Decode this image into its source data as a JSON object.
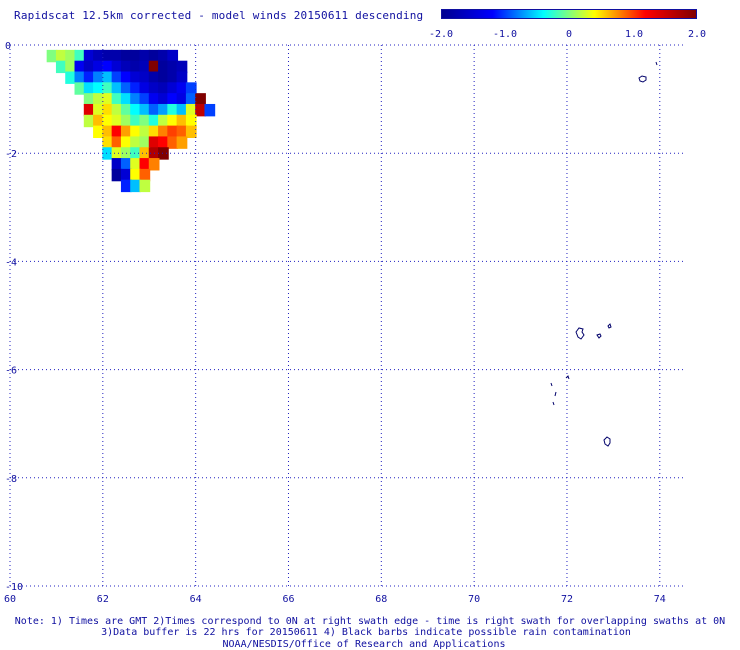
{
  "title": "Rapidscat 12.5km corrected - model winds 20150611 descending",
  "colorbar": {
    "ticks": [
      "-2.0",
      "-1.0",
      "0",
      "1.0",
      "2.0"
    ],
    "colors": [
      "#00008f",
      "#0000ff",
      "#00ffff",
      "#ffff00",
      "#ff0000",
      "#800000"
    ]
  },
  "notes": {
    "line1": "Note: 1) Times are GMT 2)Times correspond to 0N at right swath edge - time is right swath for overlapping swaths at 0N",
    "line2": "3)Data buffer is 22 hrs for 20150611 4) Black barbs indicate possible rain contamination",
    "line3": "NOAA/NESDIS/Office of Research and Applications"
  },
  "chart_data": {
    "type": "heatmap",
    "title": "Rapidscat 12.5km corrected - model winds 20150611 descending",
    "xlim": [
      60,
      74.5
    ],
    "ylim": [
      -10,
      0
    ],
    "x_ticks": [
      "60",
      "62",
      "64",
      "66",
      "68",
      "70",
      "72",
      "74"
    ],
    "y_ticks": [
      "0",
      "-2",
      "-4",
      "-6",
      "-8",
      "-10"
    ],
    "grid": true,
    "grid_style": "dotted",
    "colorscale_range": [
      -2.0,
      2.0
    ],
    "cell_size_deg": 0.22,
    "cells": [
      {
        "lon": 60.9,
        "lat": -0.2,
        "v": 0.0
      },
      {
        "lon": 61.1,
        "lat": -0.2,
        "v": 0.2
      },
      {
        "lon": 61.3,
        "lat": -0.2,
        "v": 0.1
      },
      {
        "lon": 61.5,
        "lat": -0.2,
        "v": -0.2
      },
      {
        "lon": 61.7,
        "lat": -0.2,
        "v": -1.5
      },
      {
        "lon": 61.9,
        "lat": -0.2,
        "v": -1.7
      },
      {
        "lon": 62.1,
        "lat": -0.2,
        "v": -1.8
      },
      {
        "lon": 62.3,
        "lat": -0.2,
        "v": -1.8
      },
      {
        "lon": 62.5,
        "lat": -0.2,
        "v": -1.9
      },
      {
        "lon": 62.7,
        "lat": -0.2,
        "v": -1.9
      },
      {
        "lon": 62.9,
        "lat": -0.2,
        "v": -1.8
      },
      {
        "lon": 63.1,
        "lat": -0.2,
        "v": -1.9
      },
      {
        "lon": 63.3,
        "lat": -0.2,
        "v": -1.8
      },
      {
        "lon": 63.5,
        "lat": -0.2,
        "v": -1.6
      },
      {
        "lon": 61.1,
        "lat": -0.4,
        "v": -0.2
      },
      {
        "lon": 61.3,
        "lat": -0.4,
        "v": 0.1
      },
      {
        "lon": 61.5,
        "lat": -0.4,
        "v": -1.3
      },
      {
        "lon": 61.7,
        "lat": -0.4,
        "v": -1.6
      },
      {
        "lon": 61.9,
        "lat": -0.4,
        "v": -1.4
      },
      {
        "lon": 62.1,
        "lat": -0.4,
        "v": -1.2
      },
      {
        "lon": 62.3,
        "lat": -0.4,
        "v": -1.5
      },
      {
        "lon": 62.5,
        "lat": -0.4,
        "v": -1.7
      },
      {
        "lon": 62.7,
        "lat": -0.4,
        "v": -1.8
      },
      {
        "lon": 62.9,
        "lat": -0.4,
        "v": -1.7
      },
      {
        "lon": 63.1,
        "lat": -0.4,
        "v": 2.0
      },
      {
        "lon": 63.3,
        "lat": -0.4,
        "v": -1.9
      },
      {
        "lon": 63.5,
        "lat": -0.4,
        "v": -1.8
      },
      {
        "lon": 63.7,
        "lat": -0.4,
        "v": -1.7
      },
      {
        "lon": 61.3,
        "lat": -0.6,
        "v": -0.3
      },
      {
        "lon": 61.5,
        "lat": -0.6,
        "v": -0.8
      },
      {
        "lon": 61.7,
        "lat": -0.6,
        "v": -1.1
      },
      {
        "lon": 61.9,
        "lat": -0.6,
        "v": -0.8
      },
      {
        "lon": 62.1,
        "lat": -0.6,
        "v": -0.6
      },
      {
        "lon": 62.3,
        "lat": -0.6,
        "v": -1.0
      },
      {
        "lon": 62.5,
        "lat": -0.6,
        "v": -1.2
      },
      {
        "lon": 62.7,
        "lat": -0.6,
        "v": -1.5
      },
      {
        "lon": 62.9,
        "lat": -0.6,
        "v": -1.6
      },
      {
        "lon": 63.1,
        "lat": -0.6,
        "v": -1.8
      },
      {
        "lon": 63.3,
        "lat": -0.6,
        "v": -1.9
      },
      {
        "lon": 63.5,
        "lat": -0.6,
        "v": -1.8
      },
      {
        "lon": 63.7,
        "lat": -0.6,
        "v": -1.6
      },
      {
        "lon": 61.5,
        "lat": -0.8,
        "v": -0.1
      },
      {
        "lon": 61.7,
        "lat": -0.8,
        "v": -0.5
      },
      {
        "lon": 61.9,
        "lat": -0.8,
        "v": -0.4
      },
      {
        "lon": 62.1,
        "lat": -0.8,
        "v": -0.2
      },
      {
        "lon": 62.3,
        "lat": -0.8,
        "v": -0.6
      },
      {
        "lon": 62.5,
        "lat": -0.8,
        "v": -0.9
      },
      {
        "lon": 62.7,
        "lat": -0.8,
        "v": -1.1
      },
      {
        "lon": 62.9,
        "lat": -0.8,
        "v": -1.4
      },
      {
        "lon": 63.1,
        "lat": -0.8,
        "v": -1.6
      },
      {
        "lon": 63.3,
        "lat": -0.8,
        "v": -1.7
      },
      {
        "lon": 63.5,
        "lat": -0.8,
        "v": -1.5
      },
      {
        "lon": 63.7,
        "lat": -0.8,
        "v": -1.3
      },
      {
        "lon": 63.9,
        "lat": -0.8,
        "v": -1.0
      },
      {
        "lon": 61.7,
        "lat": -1.0,
        "v": 0.0
      },
      {
        "lon": 61.9,
        "lat": -1.0,
        "v": 0.2
      },
      {
        "lon": 62.1,
        "lat": -1.0,
        "v": 0.3
      },
      {
        "lon": 62.3,
        "lat": -1.0,
        "v": -0.2
      },
      {
        "lon": 62.5,
        "lat": -1.0,
        "v": -0.5
      },
      {
        "lon": 62.7,
        "lat": -1.0,
        "v": -0.8
      },
      {
        "lon": 62.9,
        "lat": -1.0,
        "v": -1.0
      },
      {
        "lon": 63.1,
        "lat": -1.0,
        "v": -1.3
      },
      {
        "lon": 63.3,
        "lat": -1.0,
        "v": -1.5
      },
      {
        "lon": 63.5,
        "lat": -1.0,
        "v": -1.2
      },
      {
        "lon": 63.7,
        "lat": -1.0,
        "v": -1.4
      },
      {
        "lon": 63.9,
        "lat": -1.0,
        "v": -0.9
      },
      {
        "lon": 64.1,
        "lat": -1.0,
        "v": 2.0
      },
      {
        "lon": 61.7,
        "lat": -1.2,
        "v": 1.4
      },
      {
        "lon": 61.9,
        "lat": -1.2,
        "v": 0.3
      },
      {
        "lon": 62.1,
        "lat": -1.2,
        "v": 0.5
      },
      {
        "lon": 62.3,
        "lat": -1.2,
        "v": 0.2
      },
      {
        "lon": 62.5,
        "lat": -1.2,
        "v": -0.1
      },
      {
        "lon": 62.7,
        "lat": -1.2,
        "v": -0.4
      },
      {
        "lon": 62.9,
        "lat": -1.2,
        "v": -0.6
      },
      {
        "lon": 63.1,
        "lat": -1.2,
        "v": -0.9
      },
      {
        "lon": 63.3,
        "lat": -1.2,
        "v": -0.7
      },
      {
        "lon": 63.5,
        "lat": -1.2,
        "v": -0.3
      },
      {
        "lon": 63.7,
        "lat": -1.2,
        "v": -0.6
      },
      {
        "lon": 63.9,
        "lat": -1.2,
        "v": 0.3
      },
      {
        "lon": 64.1,
        "lat": -1.2,
        "v": 1.6
      },
      {
        "lon": 64.3,
        "lat": -1.2,
        "v": -1.0
      },
      {
        "lon": 61.7,
        "lat": -1.4,
        "v": 0.2
      },
      {
        "lon": 61.9,
        "lat": -1.4,
        "v": 0.6
      },
      {
        "lon": 62.1,
        "lat": -1.4,
        "v": 0.4
      },
      {
        "lon": 62.3,
        "lat": -1.4,
        "v": 0.3
      },
      {
        "lon": 62.5,
        "lat": -1.4,
        "v": 0.1
      },
      {
        "lon": 62.7,
        "lat": -1.4,
        "v": -0.2
      },
      {
        "lon": 62.9,
        "lat": -1.4,
        "v": 0.0
      },
      {
        "lon": 63.1,
        "lat": -1.4,
        "v": -0.3
      },
      {
        "lon": 63.3,
        "lat": -1.4,
        "v": 0.2
      },
      {
        "lon": 63.5,
        "lat": -1.4,
        "v": 0.4
      },
      {
        "lon": 63.7,
        "lat": -1.4,
        "v": 0.6
      },
      {
        "lon": 63.9,
        "lat": -1.4,
        "v": 0.4
      },
      {
        "lon": 61.9,
        "lat": -1.6,
        "v": 0.4
      },
      {
        "lon": 62.1,
        "lat": -1.6,
        "v": 0.6
      },
      {
        "lon": 62.3,
        "lat": -1.6,
        "v": 1.2
      },
      {
        "lon": 62.5,
        "lat": -1.6,
        "v": 0.7
      },
      {
        "lon": 62.7,
        "lat": -1.6,
        "v": 0.4
      },
      {
        "lon": 62.9,
        "lat": -1.6,
        "v": 0.2
      },
      {
        "lon": 63.1,
        "lat": -1.6,
        "v": 0.5
      },
      {
        "lon": 63.3,
        "lat": -1.6,
        "v": 0.8
      },
      {
        "lon": 63.5,
        "lat": -1.6,
        "v": 1.0
      },
      {
        "lon": 63.7,
        "lat": -1.6,
        "v": 0.9
      },
      {
        "lon": 63.9,
        "lat": -1.6,
        "v": 0.6
      },
      {
        "lon": 62.1,
        "lat": -1.8,
        "v": 0.5
      },
      {
        "lon": 62.3,
        "lat": -1.8,
        "v": 0.9
      },
      {
        "lon": 62.5,
        "lat": -1.8,
        "v": 0.4
      },
      {
        "lon": 62.7,
        "lat": -1.8,
        "v": 0.2
      },
      {
        "lon": 62.9,
        "lat": -1.8,
        "v": 0.1
      },
      {
        "lon": 63.1,
        "lat": -1.8,
        "v": 1.4
      },
      {
        "lon": 63.3,
        "lat": -1.8,
        "v": 1.2
      },
      {
        "lon": 63.5,
        "lat": -1.8,
        "v": 0.9
      },
      {
        "lon": 63.7,
        "lat": -1.8,
        "v": 0.7
      },
      {
        "lon": 62.1,
        "lat": -2.0,
        "v": -0.5
      },
      {
        "lon": 62.3,
        "lat": -2.0,
        "v": 0.3
      },
      {
        "lon": 62.5,
        "lat": -2.0,
        "v": 0.1
      },
      {
        "lon": 62.7,
        "lat": -2.0,
        "v": -0.2
      },
      {
        "lon": 62.9,
        "lat": -2.0,
        "v": 0.6
      },
      {
        "lon": 63.1,
        "lat": -2.0,
        "v": 1.7
      },
      {
        "lon": 63.3,
        "lat": -2.0,
        "v": 2.0
      },
      {
        "lon": 62.3,
        "lat": -2.2,
        "v": -1.6
      },
      {
        "lon": 62.5,
        "lat": -2.2,
        "v": -0.9
      },
      {
        "lon": 62.7,
        "lat": -2.2,
        "v": 0.3
      },
      {
        "lon": 62.9,
        "lat": -2.2,
        "v": 1.2
      },
      {
        "lon": 63.1,
        "lat": -2.2,
        "v": 0.8
      },
      {
        "lon": 62.3,
        "lat": -2.4,
        "v": -1.9
      },
      {
        "lon": 62.5,
        "lat": -2.4,
        "v": -1.5
      },
      {
        "lon": 62.7,
        "lat": -2.4,
        "v": 0.4
      },
      {
        "lon": 62.9,
        "lat": -2.4,
        "v": 0.9
      },
      {
        "lon": 62.5,
        "lat": -2.6,
        "v": -1.1
      },
      {
        "lon": 62.7,
        "lat": -2.6,
        "v": -0.6
      },
      {
        "lon": 62.9,
        "lat": -2.6,
        "v": 0.2
      }
    ]
  }
}
